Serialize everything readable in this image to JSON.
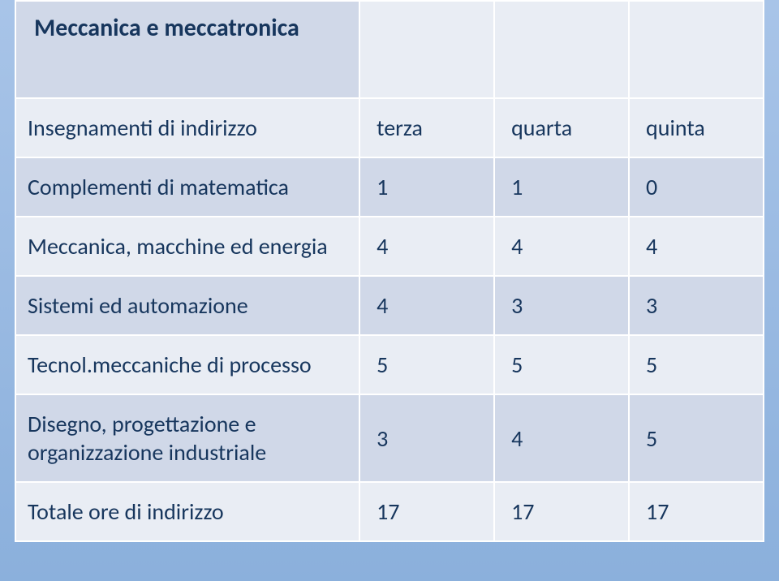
{
  "title": "Meccanica e meccatronica",
  "header": {
    "subject": "Insegnamenti di indirizzo",
    "cols": [
      "terza",
      "quarta",
      "quinta"
    ]
  },
  "rows": [
    {
      "label": "Complementi di matematica",
      "vals": [
        "1",
        "1",
        "0"
      ]
    },
    {
      "label": "Meccanica, macchine ed energia",
      "vals": [
        "4",
        "4",
        "4"
      ]
    },
    {
      "label": "Sistemi ed automazione",
      "vals": [
        "4",
        "3",
        "3"
      ]
    },
    {
      "label": "Tecnol.meccaniche di processo",
      "vals": [
        "5",
        "5",
        "5"
      ]
    },
    {
      "label": "Disegno, progettazione e organizzazione industriale",
      "vals": [
        "3",
        "4",
        "5"
      ]
    },
    {
      "label": "Totale ore di indirizzo",
      "vals": [
        "17",
        "17",
        "17"
      ]
    }
  ],
  "colors": {
    "bg_top": "#a8c4e8",
    "bg_bottom": "#8bb0dc",
    "cell_light": "#e9edf4",
    "cell_dark": "#d0d8e8",
    "border": "#ffffff",
    "text": "#17365d"
  }
}
